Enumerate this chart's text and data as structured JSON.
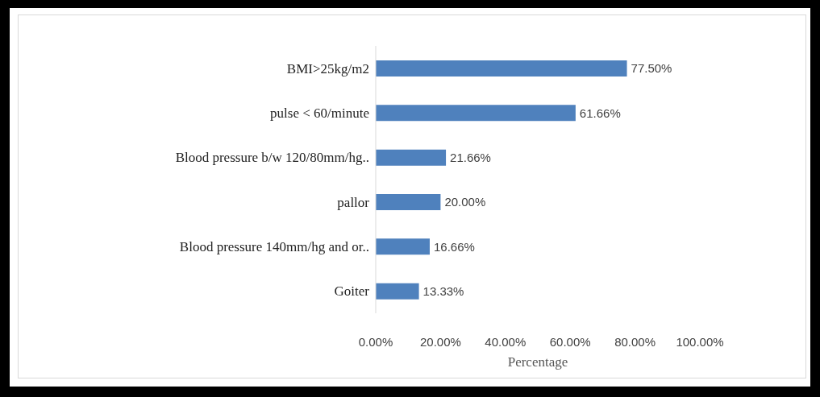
{
  "chart_data": {
    "type": "bar",
    "orientation": "horizontal",
    "xlabel": "Percentage",
    "categories": [
      "BMI>25kg/m2",
      "pulse < 60/minute",
      "Blood pressure b/w 120/80mm/hg..",
      "pallor",
      "Blood pressure 140mm/hg and or..",
      "Goiter"
    ],
    "values": [
      77.5,
      61.66,
      21.66,
      20,
      16.66,
      13.33
    ],
    "value_labels": [
      "77.50%",
      "61.66%",
      "21.66%",
      "20.00%",
      "16.66%",
      "13.33%"
    ],
    "color": "#4f81bd",
    "xlim": [
      0,
      100
    ],
    "xticks": [
      {
        "value": 0,
        "label": "0.00%"
      },
      {
        "value": 20,
        "label": "20.00%"
      },
      {
        "value": 40,
        "label": "40.00%"
      },
      {
        "value": 60,
        "label": "60.00%"
      },
      {
        "value": 80,
        "label": "80.00%"
      },
      {
        "value": 100,
        "label": "100.00%"
      }
    ]
  }
}
